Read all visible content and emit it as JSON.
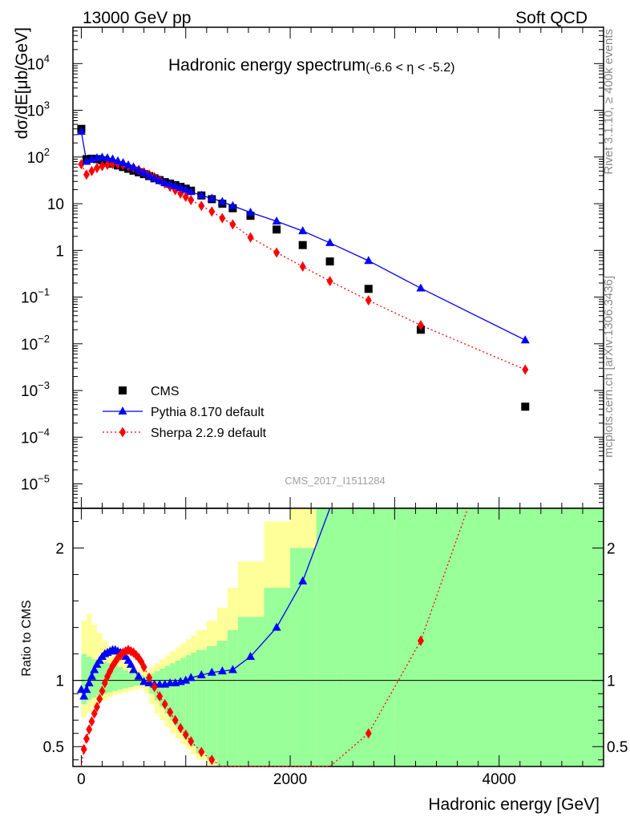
{
  "header": {
    "energy_label": "13000 GeV pp",
    "process_label": "Soft QCD"
  },
  "side_labels": {
    "rivet": "Rivet 3.1.10, ≥ 400k events",
    "source": "mcplots.cern.ch [arXiv:1306.3436]"
  },
  "analysis_id": "CMS_2017_I1511284",
  "chart_data": [
    {
      "type": "scatter",
      "panel": "main",
      "title": "Hadronic energy spectrum",
      "title_suffix": "(-6.6 < η < -5.2)",
      "ylabel": "dσ/dE[μb/GeV]",
      "xlabel": "",
      "yscale": "log",
      "xlim": [
        -80,
        5000
      ],
      "ylim": [
        3e-06,
        60000
      ],
      "y_ticks": [
        "10^4",
        "10^3",
        "10^2",
        "10",
        "1",
        "10^-1",
        "10^-2",
        "10^-3",
        "10^-4",
        "10^-5"
      ],
      "legend_position": "bottom-left",
      "series": [
        {
          "name": "CMS",
          "style": "square",
          "color": "#000000",
          "x": [
            0,
            50,
            100,
            150,
            200,
            250,
            300,
            350,
            400,
            450,
            500,
            550,
            600,
            650,
            700,
            750,
            800,
            850,
            900,
            950,
            1000,
            1050,
            1150,
            1250,
            1350,
            1450,
            1620,
            1870,
            2120,
            2380,
            2750,
            3250,
            4250
          ],
          "y": [
            400,
            90,
            92,
            90,
            85,
            78,
            72,
            66,
            61,
            56,
            51,
            47,
            43,
            39,
            35,
            32,
            29,
            27,
            25,
            23,
            21,
            19,
            15,
            12.5,
            10,
            8,
            5.5,
            2.8,
            1.3,
            0.58,
            0.15,
            0.02,
            0.00045
          ]
        },
        {
          "name": "Pythia 8.170 default",
          "style": "triangle-line",
          "color": "#0000ff",
          "x": [
            0,
            50,
            100,
            150,
            200,
            250,
            300,
            350,
            400,
            450,
            500,
            550,
            600,
            650,
            700,
            750,
            800,
            850,
            900,
            950,
            1000,
            1050,
            1150,
            1250,
            1350,
            1450,
            1620,
            1870,
            2120,
            2380,
            2750,
            3250,
            4250
          ],
          "y": [
            350,
            80,
            90,
            95,
            98,
            95,
            90,
            82,
            75,
            67,
            60,
            52,
            46,
            40,
            35,
            31,
            28,
            26,
            24,
            22,
            20,
            18,
            15,
            13,
            11,
            9,
            6.5,
            4.2,
            2.6,
            1.45,
            0.6,
            0.155,
            0.012
          ]
        },
        {
          "name": "Sherpa 2.2.9 default",
          "style": "diamond-dotted",
          "color": "#ff0000",
          "x": [
            0,
            50,
            100,
            150,
            200,
            250,
            300,
            350,
            400,
            450,
            500,
            550,
            600,
            650,
            700,
            750,
            800,
            850,
            900,
            950,
            1000,
            1050,
            1150,
            1250,
            1350,
            1450,
            1620,
            1870,
            2120,
            2380,
            2750,
            3250,
            4250
          ],
          "y": [
            70,
            42,
            50,
            58,
            64,
            68,
            71,
            71,
            68,
            64,
            59,
            53,
            47,
            42,
            37,
            32,
            27,
            23,
            19.5,
            16.5,
            14,
            12,
            9,
            6.8,
            4.9,
            3.6,
            1.9,
            0.9,
            0.45,
            0.22,
            0.085,
            0.025,
            0.0028
          ]
        }
      ]
    },
    {
      "type": "line",
      "panel": "ratio",
      "ylabel": "Ratio to CMS",
      "xlabel": "Hadronic energy [GeV]",
      "xlim": [
        -80,
        5000
      ],
      "ylim": [
        0.35,
        2.3
      ],
      "x_ticks": [
        0,
        2000,
        4000
      ],
      "y_ticks": [
        0.5,
        1,
        2
      ],
      "uncertainty_bands": {
        "inner_color": "#99ff99",
        "outer_color": "#ffff99",
        "edges": [
          0,
          50,
          100,
          150,
          200,
          250,
          300,
          350,
          400,
          450,
          500,
          550,
          600,
          650,
          700,
          750,
          800,
          850,
          900,
          950,
          1000,
          1050,
          1100,
          1200,
          1300,
          1400,
          1500,
          1750,
          2000,
          2250,
          2500,
          3000,
          3500,
          5000
        ],
        "inner_lo": [
          0.82,
          0.85,
          0.87,
          0.89,
          0.9,
          0.91,
          0.92,
          0.93,
          0.94,
          0.95,
          0.96,
          0.97,
          0.98,
          0.9,
          0.85,
          0.8,
          0.75,
          0.7,
          0.65,
          0.6,
          0.55,
          0.5,
          0.45,
          0.4,
          0.35,
          0.35,
          0.35,
          0.35,
          0.35,
          0.35,
          0.35,
          0.35,
          0.35
        ],
        "inner_hi": [
          1.2,
          1.18,
          1.16,
          1.15,
          1.14,
          1.13,
          1.12,
          1.1,
          1.08,
          1.06,
          1.05,
          1.04,
          1.03,
          1.05,
          1.07,
          1.09,
          1.11,
          1.13,
          1.15,
          1.17,
          1.19,
          1.21,
          1.23,
          1.26,
          1.3,
          1.38,
          1.48,
          1.7,
          2.0,
          2.3,
          2.3,
          2.3,
          2.3
        ],
        "outer_lo": [
          0.72,
          0.76,
          0.8,
          0.83,
          0.85,
          0.87,
          0.89,
          0.9,
          0.91,
          0.92,
          0.93,
          0.94,
          0.9,
          0.82,
          0.75,
          0.7,
          0.65,
          0.6,
          0.56,
          0.52,
          0.48,
          0.44,
          0.4,
          0.36,
          0.35,
          0.35,
          0.35,
          0.35,
          0.35,
          0.35,
          0.35,
          0.35,
          0.35
        ],
        "outer_hi": [
          1.45,
          1.5,
          1.42,
          1.36,
          1.3,
          1.26,
          1.22,
          1.18,
          1.15,
          1.12,
          1.1,
          1.08,
          1.07,
          1.1,
          1.13,
          1.16,
          1.19,
          1.22,
          1.25,
          1.28,
          1.31,
          1.34,
          1.38,
          1.45,
          1.55,
          1.7,
          1.9,
          2.2,
          2.3,
          2.3,
          2.3,
          2.3,
          2.3
        ]
      },
      "series": [
        {
          "name": "Pythia 8.170 default",
          "color": "#0000ff",
          "x": [
            0,
            25,
            50,
            75,
            100,
            125,
            150,
            175,
            200,
            225,
            250,
            275,
            300,
            325,
            350,
            375,
            400,
            425,
            450,
            475,
            500,
            550,
            600,
            650,
            700,
            750,
            800,
            850,
            900,
            950,
            1000,
            1050,
            1150,
            1250,
            1350,
            1450,
            1620,
            1870,
            2120,
            2380
          ],
          "y": [
            0.93,
            0.88,
            0.93,
            0.98,
            1.03,
            1.08,
            1.12,
            1.15,
            1.18,
            1.2,
            1.21,
            1.22,
            1.23,
            1.23,
            1.22,
            1.21,
            1.2,
            1.18,
            1.15,
            1.12,
            1.08,
            1.03,
            0.99,
            0.98,
            0.97,
            0.97,
            0.97,
            0.98,
            0.98,
            0.99,
            1.0,
            1.02,
            1.04,
            1.06,
            1.07,
            1.08,
            1.18,
            1.4,
            1.75,
            2.3
          ]
        },
        {
          "name": "Sherpa 2.2.9 default",
          "color": "#ff0000",
          "x": [
            0,
            25,
            50,
            75,
            100,
            125,
            150,
            175,
            200,
            225,
            250,
            275,
            300,
            325,
            350,
            375,
            400,
            425,
            450,
            475,
            500,
            525,
            550,
            575,
            600,
            650,
            700,
            750,
            800,
            850,
            900,
            950,
            1000,
            1050,
            1150,
            1250,
            1350,
            1450,
            2380,
            2750,
            3250,
            3700
          ],
          "y": [
            0.35,
            0.48,
            0.56,
            0.63,
            0.69,
            0.75,
            0.8,
            0.86,
            0.92,
            0.98,
            1.03,
            1.07,
            1.11,
            1.14,
            1.17,
            1.19,
            1.21,
            1.22,
            1.23,
            1.22,
            1.21,
            1.19,
            1.17,
            1.14,
            1.1,
            1.02,
            0.95,
            0.88,
            0.82,
            0.76,
            0.7,
            0.64,
            0.59,
            0.54,
            0.46,
            0.4,
            0.35,
            0.3,
            0.35,
            0.6,
            1.3,
            2.3
          ]
        }
      ]
    }
  ]
}
